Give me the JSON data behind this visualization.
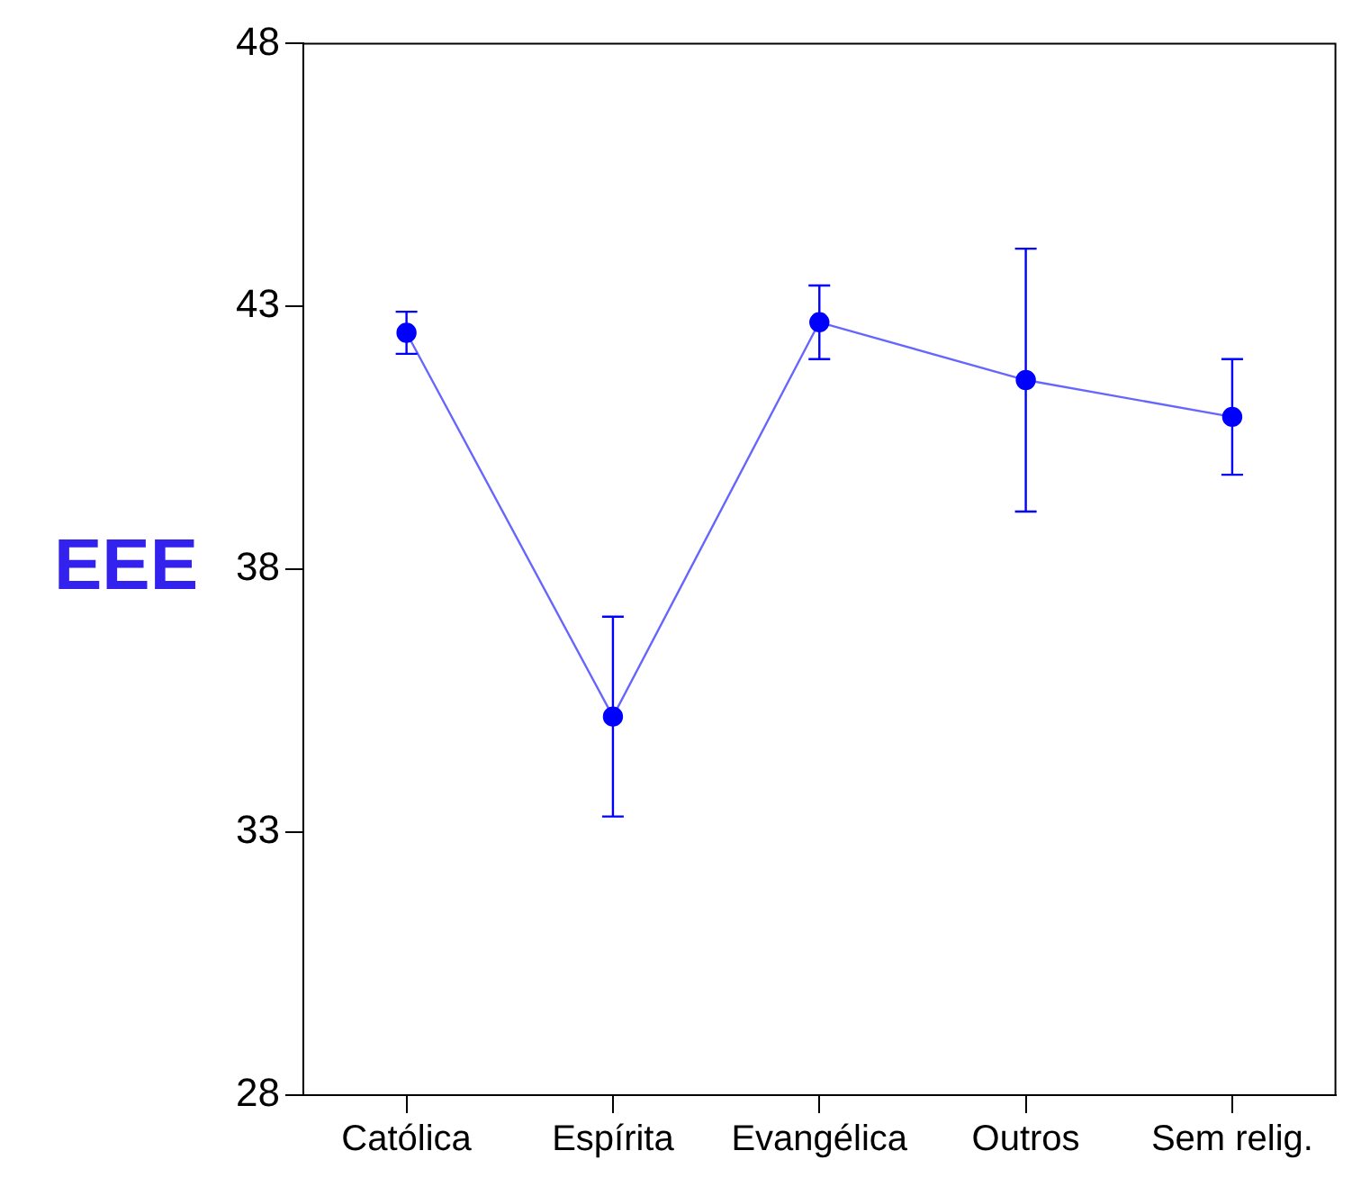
{
  "chart_data": {
    "type": "line",
    "ylabel": "EEE",
    "categories": [
      "Católica",
      "Espírita",
      "Evangélica",
      "Outros",
      "Sem relig."
    ],
    "series": [
      {
        "color": "#0000ff",
        "values": [
          42.5,
          35.2,
          42.7,
          41.6,
          40.9
        ],
        "errors": [
          0.4,
          1.9,
          0.7,
          2.5,
          1.1
        ]
      }
    ],
    "ylim": [
      28,
      48
    ],
    "yticks": [
      28,
      33,
      38,
      43,
      48
    ],
    "grid": false,
    "legend": false,
    "marker": "circle",
    "line_style": "solid"
  }
}
